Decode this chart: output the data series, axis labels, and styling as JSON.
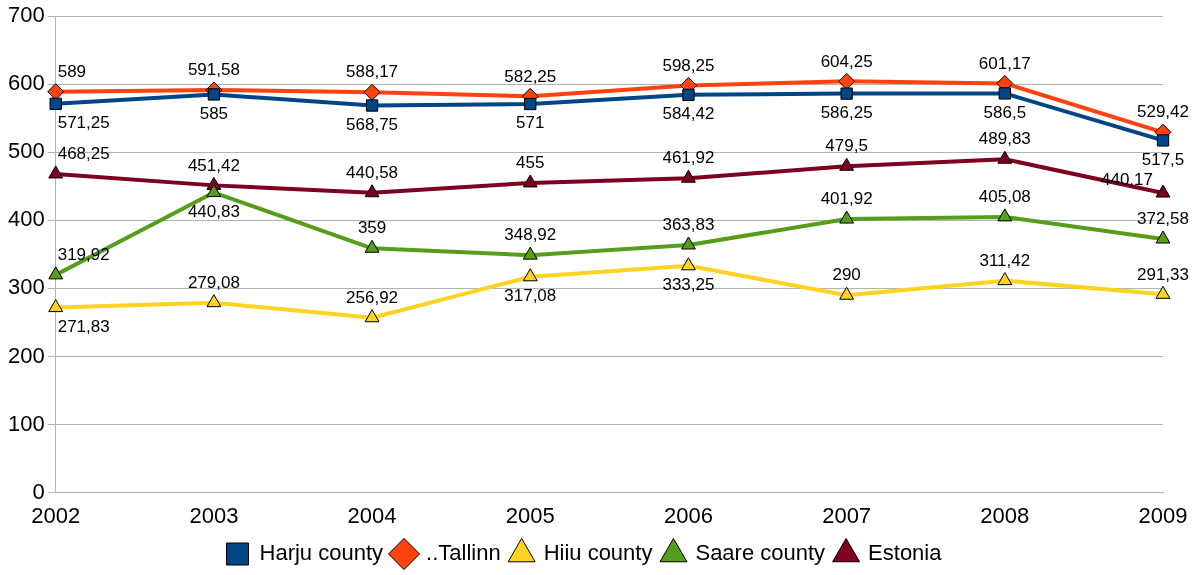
{
  "chart_data": {
    "type": "line",
    "categories": [
      "2002",
      "2003",
      "2004",
      "2005",
      "2006",
      "2007",
      "2008",
      "2009"
    ],
    "ylim": [
      0,
      700
    ],
    "yticks": [
      0,
      100,
      200,
      300,
      400,
      500,
      600,
      700
    ],
    "grid": "y",
    "legend": "bottom",
    "line_style": "solid",
    "series": [
      {
        "name": "Harju county",
        "color": "#004586",
        "marker": "square",
        "values": [
          571.25,
          585,
          568.75,
          571,
          584.42,
          586.25,
          586.5,
          517.5
        ],
        "value_labels": [
          "571,25",
          "585",
          "568,75",
          "571",
          "584,42",
          "586,25",
          "586,5",
          "517,5"
        ]
      },
      {
        "name": "..Tallinn",
        "color": "#ff420e",
        "marker": "diamond",
        "values": [
          589,
          591.58,
          588.17,
          582.25,
          598.25,
          604.25,
          601.17,
          529.42
        ],
        "value_labels": [
          "589",
          "591,58",
          "588,17",
          "582,25",
          "598,25",
          "604,25",
          "601,17",
          "529,42"
        ]
      },
      {
        "name": "Hiiu county",
        "color": "#ffd320",
        "marker": "triangle",
        "values": [
          271.83,
          279.08,
          256.92,
          317.08,
          333.25,
          290,
          311.42,
          291.33
        ],
        "value_labels": [
          "271,83",
          "279,08",
          "256,92",
          "317,08",
          "333,25",
          "290",
          "311,42",
          "291,33"
        ]
      },
      {
        "name": "Saare county",
        "color": "#579d1c",
        "marker": "triangle",
        "values": [
          319.92,
          440.83,
          359,
          348.92,
          363.83,
          401.92,
          405.08,
          372.58
        ],
        "value_labels": [
          "319,92",
          "440,83",
          "359",
          "348,92",
          "363,83",
          "401,92",
          "405,08",
          "372,58"
        ]
      },
      {
        "name": "Estonia",
        "color": "#7e0021",
        "marker": "triangle",
        "values": [
          468.25,
          451.42,
          440.58,
          455,
          461.92,
          479.5,
          489.83,
          440.17
        ],
        "value_labels": [
          "468,25",
          "451,42",
          "440,58",
          "455",
          "461,92",
          "479,5",
          "489,83",
          "440,17"
        ]
      }
    ]
  }
}
